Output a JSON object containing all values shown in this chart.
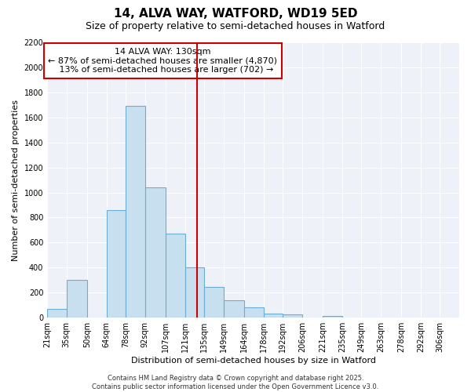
{
  "title": "14, ALVA WAY, WATFORD, WD19 5ED",
  "subtitle": "Size of property relative to semi-detached houses in Watford",
  "xlabel": "Distribution of semi-detached houses by size in Watford",
  "ylabel": "Number of semi-detached properties",
  "bar_color": "#c8dff0",
  "bar_edge_color": "#6aaed6",
  "background_color": "#ffffff",
  "plot_bg_color": "#eef2f8",
  "grid_color": "#ffffff",
  "bin_labels": [
    "21sqm",
    "35sqm",
    "50sqm",
    "64sqm",
    "78sqm",
    "92sqm",
    "107sqm",
    "121sqm",
    "135sqm",
    "149sqm",
    "164sqm",
    "178sqm",
    "192sqm",
    "206sqm",
    "221sqm",
    "235sqm",
    "249sqm",
    "263sqm",
    "278sqm",
    "292sqm",
    "306sqm"
  ],
  "bin_edges": [
    21,
    35,
    50,
    64,
    78,
    92,
    107,
    121,
    135,
    149,
    164,
    178,
    192,
    206,
    221,
    235,
    249,
    263,
    278,
    292,
    306,
    320
  ],
  "bar_heights": [
    70,
    305,
    0,
    860,
    1690,
    1040,
    670,
    400,
    245,
    140,
    80,
    35,
    25,
    0,
    15,
    0,
    0,
    0,
    0,
    0,
    0
  ],
  "ylim": [
    0,
    2200
  ],
  "yticks": [
    0,
    200,
    400,
    600,
    800,
    1000,
    1200,
    1400,
    1600,
    1800,
    2000,
    2200
  ],
  "property_size": 130,
  "property_label": "14 ALVA WAY: 130sqm",
  "pct_smaller": 87,
  "count_smaller": 4870,
  "pct_larger": 13,
  "count_larger": 702,
  "vline_color": "#cc0000",
  "annotation_box_edge_color": "#cc0000",
  "footer_line1": "Contains HM Land Registry data © Crown copyright and database right 2025.",
  "footer_line2": "Contains public sector information licensed under the Open Government Licence v3.0.",
  "title_fontsize": 11,
  "subtitle_fontsize": 9,
  "axis_label_fontsize": 8,
  "tick_fontsize": 7,
  "annotation_fontsize": 8,
  "footer_fontsize": 6
}
